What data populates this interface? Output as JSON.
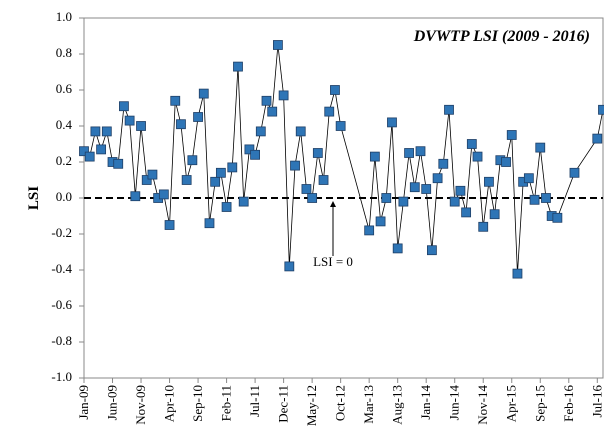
{
  "chart_data": {
    "type": "line",
    "title": "DVWTP LSI (2009 - 2016)",
    "y_label": "LSI",
    "annotation": "LSI = 0",
    "x": [
      "Jan-09",
      "Feb-09",
      "Mar-09",
      "Apr-09",
      "May-09",
      "Jun-09",
      "Jul-09",
      "Aug-09",
      "Sep-09",
      "Oct-09",
      "Nov-09",
      "Dec-09",
      "Jan-10",
      "Feb-10",
      "Mar-10",
      "Apr-10",
      "May-10",
      "Jun-10",
      "Jul-10",
      "Aug-10",
      "Sep-10",
      "Oct-10",
      "Nov-10",
      "Dec-10",
      "Jan-11",
      "Feb-11",
      "Mar-11",
      "Apr-11",
      "May-11",
      "Jun-11",
      "Jul-11",
      "Aug-11",
      "Sep-11",
      "Oct-11",
      "Nov-11",
      "Dec-11",
      "Jan-12",
      "Feb-12",
      "Mar-12",
      "Apr-12",
      "May-12",
      "Jun-12",
      "Jul-12",
      "Aug-12",
      "Sep-12",
      "Oct-12",
      "Mar-13",
      "Apr-13",
      "May-13",
      "Jun-13",
      "Jul-13",
      "Aug-13",
      "Sep-13",
      "Oct-13",
      "Nov-13",
      "Dec-13",
      "Jan-14",
      "Feb-14",
      "Mar-14",
      "Apr-14",
      "May-14",
      "Jun-14",
      "Jul-14",
      "Aug-14",
      "Sep-14",
      "Oct-14",
      "Nov-14",
      "Dec-14",
      "Jan-15",
      "Feb-15",
      "Mar-15",
      "Apr-15",
      "May-15",
      "Jun-15",
      "Jul-15",
      "Aug-15",
      "Sep-15",
      "Oct-15",
      "Nov-15",
      "Dec-15",
      "Mar-16",
      "Jul-16",
      "Aug-16"
    ],
    "series": [
      {
        "name": "LSI",
        "color": "#2e75b6",
        "values": [
          0.26,
          0.23,
          0.37,
          0.27,
          0.37,
          0.2,
          0.19,
          0.51,
          0.43,
          0.01,
          0.4,
          0.1,
          0.13,
          0.0,
          0.02,
          -0.15,
          0.54,
          0.41,
          0.1,
          0.21,
          0.45,
          0.58,
          -0.14,
          0.09,
          0.14,
          -0.05,
          0.17,
          0.73,
          -0.02,
          0.27,
          0.24,
          0.37,
          0.54,
          0.48,
          0.85,
          0.57,
          -0.38,
          0.18,
          0.37,
          0.05,
          0.0,
          0.25,
          0.1,
          0.48,
          0.6,
          0.4,
          -0.18,
          0.23,
          -0.13,
          0.0,
          0.42,
          -0.28,
          -0.02,
          0.25,
          0.06,
          0.26,
          0.05,
          -0.29,
          0.11,
          0.19,
          0.49,
          -0.02,
          0.04,
          -0.08,
          0.3,
          0.23,
          -0.16,
          0.09,
          -0.09,
          0.21,
          0.2,
          0.35,
          -0.42,
          0.09,
          0.11,
          -0.01,
          0.28,
          0.0,
          -0.1,
          -0.11,
          0.14,
          0.33,
          0.49
        ]
      }
    ],
    "xlim": [
      "Jan-09",
      "Aug-16"
    ],
    "xticks": [
      "Jan-09",
      "Jun-09",
      "Nov-09",
      "Apr-10",
      "Sep-10",
      "Feb-11",
      "Jul-11",
      "Dec-11",
      "May-12",
      "Oct-12",
      "Mar-13",
      "Aug-13",
      "Jan-14",
      "Jun-14",
      "Nov-14",
      "Apr-15",
      "Sep-15",
      "Feb-16",
      "Jul-16"
    ],
    "ylim": [
      -1,
      1
    ],
    "yticks": [
      {
        "value": -1,
        "label": "-1.0"
      },
      {
        "value": -0.8,
        "label": "-0.8"
      },
      {
        "value": -0.6,
        "label": "-0.6"
      },
      {
        "value": -0.4,
        "label": "-0.4"
      },
      {
        "value": -0.2,
        "label": "-0.2"
      },
      {
        "value": 0,
        "label": "0.0"
      },
      {
        "value": 0.2,
        "label": "0.2"
      },
      {
        "value": 0.4,
        "label": "0.4"
      },
      {
        "value": 0.6,
        "label": "0.6"
      },
      {
        "value": 0.8,
        "label": "0.8"
      },
      {
        "value": 1,
        "label": "1.0"
      }
    ],
    "reference_line": 0
  }
}
